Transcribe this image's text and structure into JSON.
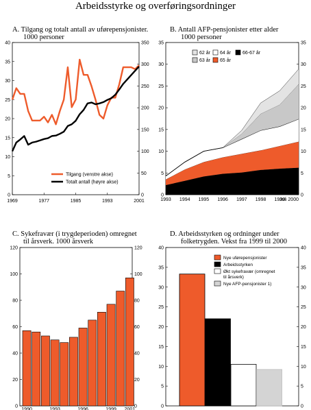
{
  "title": "Arbeidsstyrke og overføringsordninger",
  "colors": {
    "orange": "#ee5b2b",
    "black": "#000000",
    "light_gray": "#e3e3e3",
    "mid_gray": "#c8c8c8",
    "white": "#ffffff"
  },
  "panels": {
    "a": {
      "title_line1": "A.  Tilgang og totalt antall av uførepensjonister.",
      "title_line2": "1000 personer"
    },
    "b": {
      "title_line1": "B.  Antall AFP-pensjonister etter alder",
      "title_line2": "1000 personer"
    },
    "c": {
      "title_line1": "C.  Sykefravær (i trygdeperioden) omregnet",
      "title_line2": "til årsverk. 1000 årsverk"
    },
    "d": {
      "title_line1": "D.  Arbeidsstyrken og ordninger  under",
      "title_line2": "folketrygden. Vekst fra 1999 til 2000"
    }
  },
  "chart_data": [
    {
      "id": "A",
      "type": "line",
      "x": [
        1969,
        1970,
        1971,
        1972,
        1973,
        1974,
        1975,
        1976,
        1977,
        1978,
        1979,
        1980,
        1981,
        1982,
        1983,
        1984,
        1985,
        1986,
        1987,
        1988,
        1989,
        1990,
        1991,
        1992,
        1993,
        1994,
        1995,
        1996,
        1997,
        1998,
        1999,
        2000,
        2001
      ],
      "x_tick_labels": [
        "1969",
        "1977",
        "1985",
        "1993",
        "2001"
      ],
      "ylim_left": [
        0,
        40
      ],
      "ylim_right": [
        0,
        350
      ],
      "y_ticks_left": [
        "0",
        "5",
        "10",
        "15",
        "20",
        "25",
        "30",
        "35",
        "40"
      ],
      "y_ticks_right": [
        "0",
        "50",
        "100",
        "150",
        "200",
        "250",
        "300",
        "350"
      ],
      "series": [
        {
          "name": "Tilgang (venstre akse)",
          "axis": "left",
          "color": "#ee5b2b",
          "values": [
            25,
            28,
            26.5,
            26.5,
            22,
            19.5,
            19.5,
            19.5,
            20.5,
            19,
            21,
            18.5,
            22,
            25,
            33.5,
            23,
            25,
            35.5,
            31.5,
            31.5,
            28.5,
            25,
            21,
            20,
            23.5,
            25.5,
            25.5,
            29,
            33.5,
            33.5,
            33.5,
            33,
            34
          ]
        },
        {
          "name": "Totalt antall (høyre akse)",
          "axis": "right",
          "color": "#000000",
          "values": [
            100,
            120,
            127,
            135,
            115,
            120,
            122,
            125,
            128,
            130,
            135,
            136,
            140,
            145,
            158,
            162,
            170,
            185,
            195,
            210,
            212,
            208,
            210,
            213,
            218,
            222,
            230,
            242,
            255,
            265,
            275,
            285,
            295
          ]
        }
      ],
      "legend": [
        "Tilgang (venstre akse)",
        "Totalt antall (høyre akse)"
      ]
    },
    {
      "id": "B",
      "type": "area",
      "x_tick_labels": [
        "1993",
        "1994",
        "1995",
        "1996",
        "1997",
        "1998",
        "1999",
        "Juli 2000"
      ],
      "ylim": [
        0,
        35
      ],
      "y_ticks": [
        "0",
        "5",
        "10",
        "15",
        "20",
        "25",
        "30",
        "35"
      ],
      "series": [
        {
          "name": "66-67 år",
          "color": "#000000",
          "values": [
            2.2,
            3.2,
            4.2,
            4.8,
            5.1,
            5.7,
            6.0,
            6.2
          ]
        },
        {
          "name": "65 år",
          "color": "#ee5b2b",
          "values": [
            1.3,
            2.6,
            3.3,
            3.8,
            4.3,
            4.5,
            5.2,
            6.0
          ]
        },
        {
          "name": "64 år",
          "color": "#ffffff",
          "values": [
            0.8,
            1.7,
            2.5,
            2.2,
            3.4,
            4.6,
            4.5,
            5.2
          ]
        },
        {
          "name": "63 år",
          "color": "#c8c8c8",
          "values": [
            0,
            0,
            0,
            0,
            1.2,
            3.8,
            5.0,
            8.0
          ]
        },
        {
          "name": "62 år",
          "color": "#e3e3e3",
          "values": [
            0,
            0,
            0,
            0,
            0.8,
            2.5,
            3.2,
            3.5
          ]
        }
      ],
      "legend": [
        "62 år",
        "64 år",
        "66-67 år",
        "63 år",
        "65 år"
      ]
    },
    {
      "id": "C",
      "type": "bar",
      "categories": [
        "1990",
        "1991",
        "1992",
        "1993",
        "1994",
        "1995",
        "1996",
        "1997",
        "1998",
        "1999",
        "2000",
        "2001"
      ],
      "x_tick_labels": [
        "1990",
        "1993",
        "1996",
        "1999",
        "2001"
      ],
      "values": [
        57,
        56,
        53,
        50,
        48,
        52,
        59,
        65,
        71,
        77,
        87,
        97
      ],
      "ylim": [
        0,
        120
      ],
      "y_ticks": [
        "0",
        "20",
        "40",
        "60",
        "80",
        "100",
        "120"
      ],
      "color": "#ee5b2b"
    },
    {
      "id": "D",
      "type": "bar",
      "categories": [
        "Nye uførepensjonister",
        "Arbeidsstyrken",
        "Økt sykefravær (omregnet til årsverk)",
        "Nye AFP-pensjonister 1)"
      ],
      "values": [
        33.3,
        22,
        10.5,
        9.2
      ],
      "colors": [
        "#ee5b2b",
        "#000000",
        "#ffffff",
        "#d4d4d4"
      ],
      "ylim": [
        0,
        40
      ],
      "y_ticks": [
        "0",
        "5",
        "10",
        "15",
        "20",
        "25",
        "30",
        "35",
        "40"
      ],
      "legend": [
        "Nye uførepensjonister",
        "Arbeidsstyrken",
        "Økt sykefravær (omregnet",
        "til årsverk)",
        "Nye AFP-pensjonister 1)"
      ]
    }
  ]
}
